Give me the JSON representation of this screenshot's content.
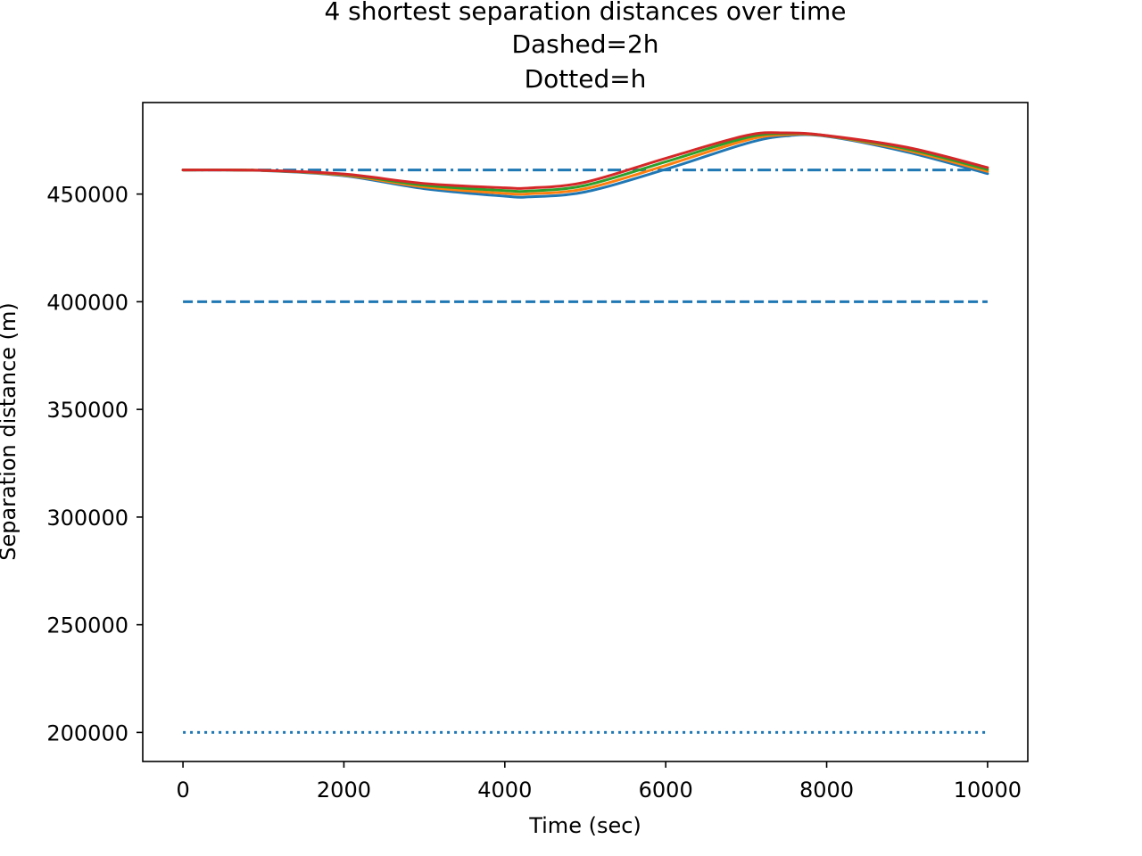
{
  "chart_data": {
    "type": "line",
    "title_lines": [
      "4 shortest separation distances over time",
      "Dashed=2h",
      "Dotted=h"
    ],
    "xlabel": "Time (sec)",
    "ylabel": "Separation distance (m)",
    "xlim": [
      -500,
      10500
    ],
    "ylim": [
      186500,
      492500
    ],
    "xticks": [
      0,
      2000,
      4000,
      6000,
      8000,
      10000
    ],
    "xtick_labels": [
      "0",
      "2000",
      "4000",
      "6000",
      "8000",
      "10000"
    ],
    "yticks": [
      200000,
      250000,
      300000,
      350000,
      400000,
      450000
    ],
    "ytick_labels": [
      "200000",
      "250000",
      "300000",
      "350000",
      "400000",
      "450000"
    ],
    "grid": false,
    "legend": "none",
    "x": [
      0,
      1000,
      2000,
      3000,
      4000,
      4300,
      5000,
      6000,
      7000,
      7500,
      8000,
      9000,
      10000
    ],
    "series": [
      {
        "style": "solid",
        "color": "#1f77b4",
        "values": [
          461200,
          460900,
          458500,
          452500,
          449000,
          448700,
          451000,
          461500,
          473500,
          477000,
          476800,
          469500,
          459500
        ]
      },
      {
        "style": "solid",
        "color": "#ff7f0e",
        "values": [
          461200,
          461000,
          458800,
          453300,
          450300,
          450100,
          452500,
          463300,
          475000,
          477600,
          477000,
          470300,
          460500
        ]
      },
      {
        "style": "solid",
        "color": "#2ca02c",
        "values": [
          461200,
          461000,
          459100,
          454100,
          451600,
          451400,
          454000,
          465000,
          476200,
          478100,
          477100,
          471000,
          461400
        ]
      },
      {
        "style": "solid",
        "color": "#d62728",
        "values": [
          461200,
          461000,
          459300,
          454900,
          452900,
          452800,
          455500,
          466600,
          477200,
          478400,
          477200,
          471700,
          462300
        ]
      }
    ],
    "reference_lines": [
      {
        "style": "dashdot",
        "color": "#1f77b4",
        "y": 461200,
        "x": [
          0,
          10000
        ]
      },
      {
        "style": "dashed",
        "color": "#1f77b4",
        "y": 400000,
        "x": [
          0,
          10000
        ]
      },
      {
        "style": "dotted",
        "color": "#1f77b4",
        "y": 200000,
        "x": [
          0,
          10000
        ]
      }
    ]
  }
}
